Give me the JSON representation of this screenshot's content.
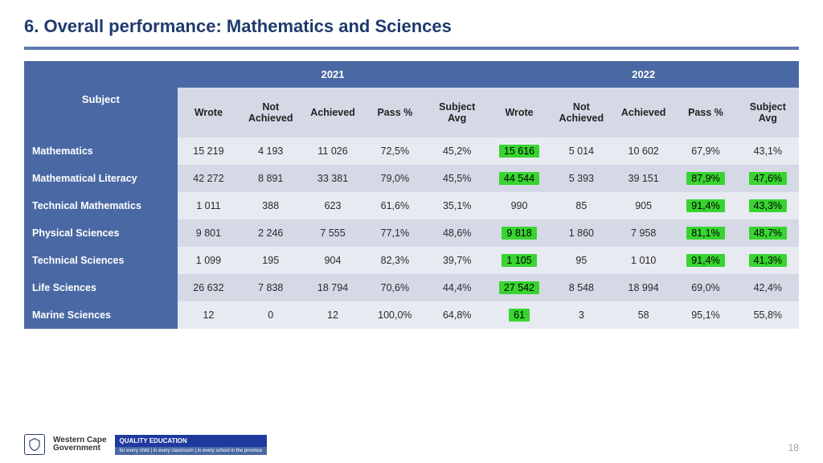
{
  "title": "6. Overall performance: Mathematics and Sciences",
  "page_number": "18",
  "colors": {
    "title": "#1f3a6e",
    "header_bg": "#4a69a4",
    "subheader_bg": "#d5d9e6",
    "row_odd": "#e8eaf2",
    "row_even": "#d5d9e6",
    "highlight": "#38d430",
    "rule": "#5f78af"
  },
  "table": {
    "subject_header": "Subject",
    "year1": "2021",
    "year2": "2022",
    "subheaders": [
      "Wrote",
      "Not Achieved",
      "Achieved",
      "Pass %",
      "Subject Avg"
    ],
    "rows": [
      {
        "label": "Mathematics",
        "y1": [
          "15 219",
          "4 193",
          "11 026",
          "72,5%",
          "45,2%"
        ],
        "y2": [
          "15 616",
          "5 014",
          "10 602",
          "67,9%",
          "43,1%"
        ],
        "hl": [
          true,
          false,
          false,
          false,
          false
        ]
      },
      {
        "label": "Mathematical Literacy",
        "y1": [
          "42 272",
          "8 891",
          "33 381",
          "79,0%",
          "45,5%"
        ],
        "y2": [
          "44 544",
          "5 393",
          "39 151",
          "87,9%",
          "47,6%"
        ],
        "hl": [
          true,
          false,
          false,
          true,
          true
        ]
      },
      {
        "label": "Technical Mathematics",
        "y1": [
          "1 011",
          "388",
          "623",
          "61,6%",
          "35,1%"
        ],
        "y2": [
          "990",
          "85",
          "905",
          "91,4%",
          "43,3%"
        ],
        "hl": [
          false,
          false,
          false,
          true,
          true
        ]
      },
      {
        "label": "Physical Sciences",
        "y1": [
          "9 801",
          "2 246",
          "7 555",
          "77,1%",
          "48,6%"
        ],
        "y2": [
          "9 818",
          "1 860",
          "7 958",
          "81,1%",
          "48,7%"
        ],
        "hl": [
          true,
          false,
          false,
          true,
          true
        ]
      },
      {
        "label": "Technical Sciences",
        "y1": [
          "1 099",
          "195",
          "904",
          "82,3%",
          "39,7%"
        ],
        "y2": [
          "1 105",
          "95",
          "1 010",
          "91,4%",
          "41,3%"
        ],
        "hl": [
          true,
          false,
          false,
          true,
          true
        ]
      },
      {
        "label": "Life Sciences",
        "y1": [
          "26 632",
          "7 838",
          "18 794",
          "70,6%",
          "44,4%"
        ],
        "y2": [
          "27 542",
          "8 548",
          "18 994",
          "69,0%",
          "42,4%"
        ],
        "hl": [
          true,
          false,
          false,
          false,
          false
        ]
      },
      {
        "label": "Marine Sciences",
        "y1": [
          "12",
          "0",
          "12",
          "100,0%",
          "64,8%"
        ],
        "y2": [
          "61",
          "3",
          "58",
          "95,1%",
          "55,8%"
        ],
        "hl": [
          true,
          false,
          false,
          false,
          false
        ]
      }
    ]
  },
  "footer": {
    "org1": "Western Cape",
    "org2": "Government",
    "badge": "QUALITY EDUCATION",
    "tagline": "for every child | in every classroom | in every school in the province"
  }
}
